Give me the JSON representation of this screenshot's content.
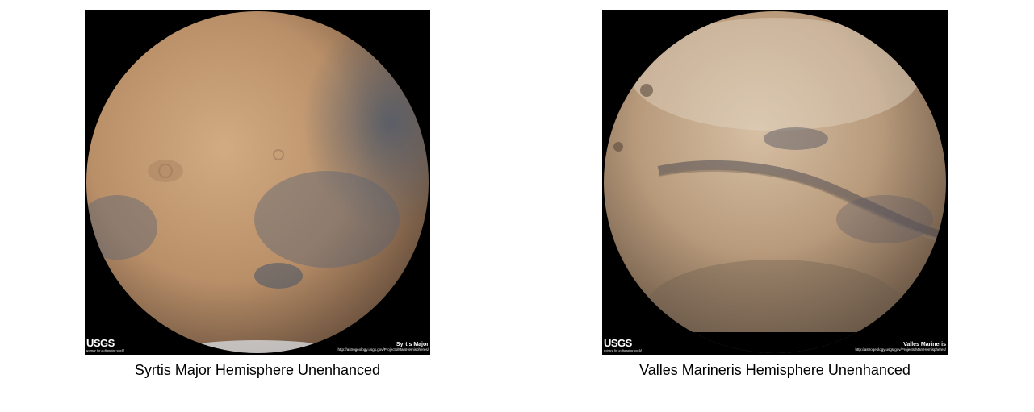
{
  "gallery": {
    "items": [
      {
        "caption": "Syrtis Major Hemisphere Unenhanced",
        "image_alt": "Syrtis Major Hemisphere Unenhanced",
        "watermark": {
          "logo": "USGS",
          "tagline": "science for a changing world",
          "region": "Syrtis Major",
          "url": "http://astrogeology.usgs.gov/Projects/MarsHemispheres/"
        },
        "colors": {
          "planet_light": "#c9a27a",
          "planet_dark": "#8a6a4c",
          "shadow_region": "#556070"
        }
      },
      {
        "caption": "Valles Marineris Hemisphere Unenhanced",
        "image_alt": "Valles Marineris Hemisphere Unenhanced",
        "watermark": {
          "logo": "USGS",
          "tagline": "science for a changing world",
          "region": "Valles Marineris",
          "url": "http://astrogeology.usgs.gov/Projects/MarsHemispheres/"
        },
        "colors": {
          "planet_light": "#c7ab8c",
          "planet_dark": "#7d6550",
          "shadow_region": "#5c5a63"
        }
      }
    ]
  }
}
